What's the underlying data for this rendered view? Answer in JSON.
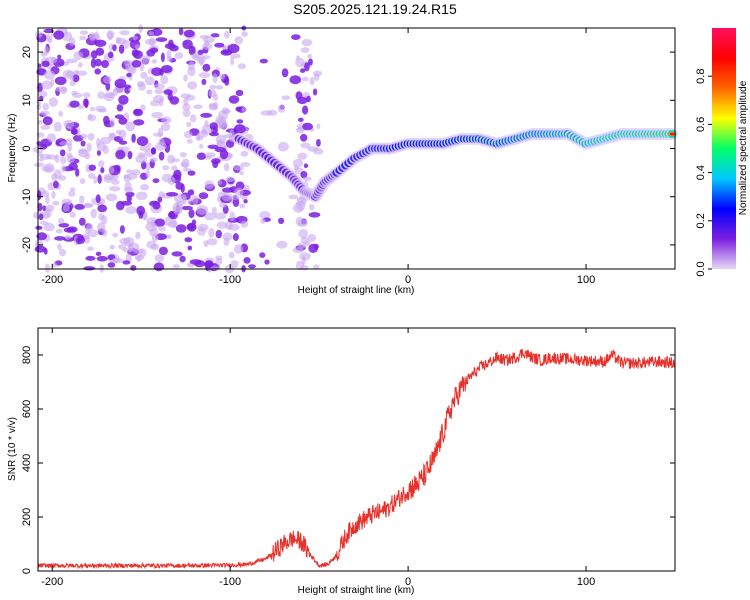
{
  "title": "S205.2025.121.19.24.R15",
  "chart_data": [
    {
      "type": "heatmap",
      "xlabel": "Height of straight line (km)",
      "ylabel": "Frequency (Hz)",
      "xlim": [
        -208,
        150
      ],
      "ylim": [
        -25,
        25
      ],
      "xticks": [
        -200,
        -100,
        0,
        100
      ],
      "yticks": [
        -20,
        -10,
        0,
        10,
        20
      ],
      "colorbar": {
        "label": "Normalized spectral amplitude",
        "range": [
          0,
          1
        ],
        "ticks": [
          0.0,
          0.2,
          0.4,
          0.6,
          0.8
        ],
        "colors": [
          "#e6d8f5",
          "#7b1fe0",
          "#0000ff",
          "#00c8ff",
          "#00ff66",
          "#ffff00",
          "#ff6600",
          "#ff0000",
          "#ff1060"
        ]
      },
      "noise_region_x": [
        -208,
        -50
      ],
      "ridge": [
        {
          "x": -95,
          "y": 2
        },
        {
          "x": -85,
          "y": 0
        },
        {
          "x": -75,
          "y": -3
        },
        {
          "x": -65,
          "y": -6
        },
        {
          "x": -58,
          "y": -9
        },
        {
          "x": -52,
          "y": -10
        },
        {
          "x": -47,
          "y": -7
        },
        {
          "x": -40,
          "y": -5
        },
        {
          "x": -30,
          "y": -2
        },
        {
          "x": -20,
          "y": 0
        },
        {
          "x": -10,
          "y": 0
        },
        {
          "x": 0,
          "y": 1
        },
        {
          "x": 10,
          "y": 1
        },
        {
          "x": 20,
          "y": 1
        },
        {
          "x": 30,
          "y": 2
        },
        {
          "x": 40,
          "y": 2
        },
        {
          "x": 50,
          "y": 1
        },
        {
          "x": 60,
          "y": 2
        },
        {
          "x": 70,
          "y": 3
        },
        {
          "x": 80,
          "y": 3
        },
        {
          "x": 90,
          "y": 3
        },
        {
          "x": 100,
          "y": 1
        },
        {
          "x": 110,
          "y": 2
        },
        {
          "x": 120,
          "y": 3
        },
        {
          "x": 130,
          "y": 3
        },
        {
          "x": 140,
          "y": 3
        },
        {
          "x": 150,
          "y": 3
        }
      ]
    },
    {
      "type": "line",
      "xlabel": "Height of straight line (km)",
      "ylabel": "SNR (10 * v/v)",
      "xlim": [
        -208,
        150
      ],
      "ylim": [
        0,
        900
      ],
      "xticks": [
        -200,
        -100,
        0,
        100
      ],
      "yticks": [
        0,
        200,
        400,
        600,
        800
      ],
      "color": "#e8302a",
      "series": [
        {
          "x": [
            -208,
            -200,
            -180,
            -160,
            -140,
            -120,
            -100,
            -90,
            -80,
            -75,
            -70,
            -65,
            -60,
            -55,
            -50,
            -45,
            -40,
            -35,
            -30,
            -25,
            -20,
            -15,
            -10,
            -5,
            0,
            5,
            10,
            15,
            20,
            25,
            30,
            35,
            40,
            45,
            50,
            55,
            60,
            65,
            70,
            75,
            80,
            90,
            100,
            110,
            115,
            120,
            130,
            140,
            150
          ],
          "y": [
            20,
            20,
            20,
            20,
            20,
            20,
            22,
            25,
            45,
            70,
            100,
            120,
            110,
            60,
            20,
            25,
            60,
            130,
            170,
            190,
            210,
            220,
            240,
            270,
            300,
            320,
            360,
            420,
            520,
            620,
            680,
            720,
            750,
            770,
            790,
            780,
            790,
            810,
            790,
            780,
            790,
            785,
            780,
            775,
            800,
            770,
            770,
            775,
            770
          ]
        }
      ]
    }
  ]
}
